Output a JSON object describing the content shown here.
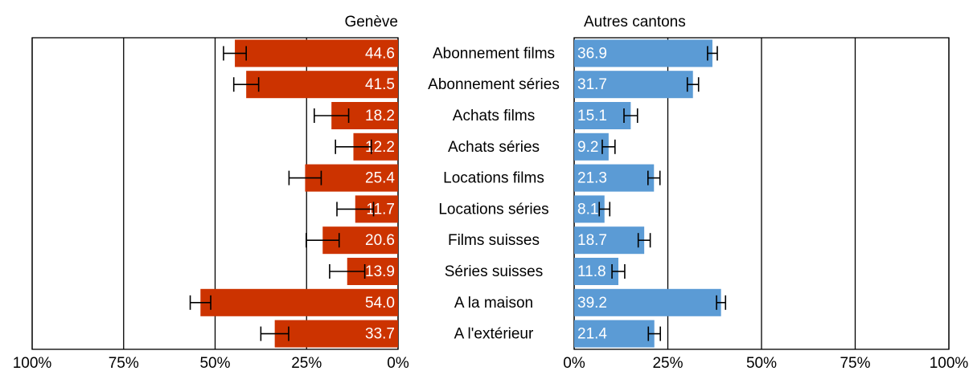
{
  "chart_data": {
    "type": "bar",
    "categories": [
      "Abonnement films",
      "Abonnement séries",
      "Achats films",
      "Achats séries",
      "Locations films",
      "Locations séries",
      "Films suisses",
      "Séries suisses",
      "A la maison",
      "A l'extérieur"
    ],
    "series": [
      {
        "name": "Genève",
        "color": "#cc3300",
        "values": [
          44.6,
          41.5,
          18.2,
          12.2,
          25.4,
          11.7,
          20.6,
          13.9,
          54.0,
          33.7
        ],
        "value_labels": [
          "44.6",
          "41.5",
          "18.2",
          "12.2",
          "25.4",
          "11.7",
          "20.6",
          "13.9",
          "54.0",
          "33.7"
        ],
        "errors": [
          3.1,
          3.4,
          4.7,
          4.9,
          4.4,
          5.0,
          4.5,
          4.8,
          2.8,
          3.8
        ]
      },
      {
        "name": "Autres cantons",
        "color": "#5b9bd5",
        "values": [
          36.9,
          31.7,
          15.1,
          9.2,
          21.3,
          8.1,
          18.7,
          11.8,
          39.2,
          21.4
        ],
        "value_labels": [
          "36.9",
          "31.7",
          "15.1",
          "9.2",
          "21.3",
          "8.1",
          "18.7",
          "11.8",
          "39.2",
          "21.4"
        ],
        "errors": [
          1.3,
          1.5,
          1.8,
          1.7,
          1.6,
          1.4,
          1.6,
          1.7,
          1.2,
          1.6
        ]
      }
    ],
    "xlim": [
      0,
      100
    ],
    "xticks": [
      {
        "value": 0,
        "label": "0%"
      },
      {
        "value": 25,
        "label": "25%"
      },
      {
        "value": 50,
        "label": "50%"
      },
      {
        "value": 75,
        "label": "75%"
      },
      {
        "value": 100,
        "label": "100%"
      }
    ],
    "grid": true
  }
}
